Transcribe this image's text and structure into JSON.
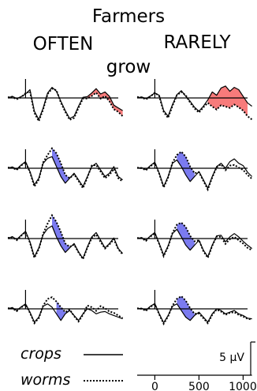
{
  "header": {
    "line1": "Farmers",
    "left": "OFTEN",
    "right": "RARELY",
    "verb": "grow"
  },
  "legend": {
    "solid_label": "crops",
    "dotted_label": "worms"
  },
  "scale": {
    "amplitude_label": "5 μV",
    "amplitude_value": 5,
    "time_unit": "ms",
    "ticks": [
      0,
      500,
      1000
    ]
  },
  "colors": {
    "positive_effect": "#f77b7b",
    "negative_effect": "#7b7bf0",
    "trace": "#000000"
  },
  "chart_data": {
    "type": "line",
    "x_unit": "ms",
    "y_unit": "μV",
    "xlim": [
      -200,
      1100
    ],
    "ylim": [
      -8,
      8
    ],
    "x": [
      -200,
      -150,
      -100,
      -50,
      0,
      50,
      100,
      150,
      200,
      250,
      300,
      350,
      400,
      450,
      500,
      550,
      600,
      650,
      700,
      750,
      800,
      850,
      900,
      950,
      1000,
      1050,
      1100
    ],
    "panels": [
      {
        "column": "OFTEN",
        "row": 1,
        "crops": [
          0.0,
          0.5,
          -0.2,
          0.4,
          1.2,
          2.5,
          -4.0,
          -6.5,
          -3.0,
          1.5,
          3.2,
          2.0,
          -1.0,
          -3.8,
          -6.2,
          -5.5,
          -2.5,
          0.2,
          0.4,
          1.5,
          2.8,
          1.2,
          1.8,
          0.5,
          -2.2,
          -3.0,
          -3.8
        ],
        "worms": [
          0.2,
          0.3,
          -0.4,
          0.2,
          1.4,
          2.0,
          -4.5,
          -7.0,
          -3.4,
          1.2,
          2.8,
          2.3,
          -1.4,
          -4.2,
          -6.6,
          -6.0,
          -3.0,
          -0.2,
          -0.2,
          0.6,
          1.6,
          -0.2,
          0.6,
          -1.0,
          -3.4,
          -4.2,
          -5.5
        ],
        "effect": "positive",
        "effect_window": [
          700,
          1100
        ]
      },
      {
        "column": "RARELY",
        "row": 1,
        "crops": [
          0.0,
          0.3,
          -0.2,
          0.6,
          1.5,
          0.8,
          -3.8,
          -5.5,
          -2.0,
          1.0,
          2.2,
          0.5,
          -1.0,
          -2.8,
          -4.0,
          -2.5,
          -0.6,
          1.8,
          0.8,
          3.0,
          3.6,
          2.0,
          3.2,
          2.5,
          0.5,
          -1.5,
          -2.5
        ],
        "worms": [
          0.3,
          0.1,
          -0.4,
          0.4,
          1.6,
          0.5,
          -4.2,
          -6.0,
          -2.4,
          0.8,
          1.8,
          0.8,
          -1.4,
          -3.2,
          -4.4,
          -2.8,
          -1.5,
          -2.6,
          -3.5,
          -2.2,
          -2.6,
          -3.0,
          -2.0,
          -2.8,
          -3.8,
          -5.5,
          -6.5
        ],
        "effect": "positive",
        "effect_window": [
          600,
          1050
        ]
      },
      {
        "column": "OFTEN",
        "row": 2,
        "crops": [
          0.0,
          0.4,
          -0.3,
          1.0,
          2.0,
          -1.0,
          -5.0,
          -3.0,
          1.5,
          3.0,
          3.5,
          0.5,
          -2.5,
          -4.5,
          -3.0,
          -1.5,
          -3.5,
          -5.5,
          -2.5,
          0.5,
          1.5,
          -0.5,
          -2.5,
          -1.5,
          0.5,
          -2.5,
          -3.5
        ],
        "worms": [
          0.2,
          0.2,
          -0.5,
          0.8,
          1.8,
          -1.2,
          -5.5,
          -3.4,
          1.8,
          4.0,
          6.0,
          4.5,
          1.5,
          -2.0,
          -3.0,
          -1.8,
          -3.8,
          -6.0,
          -2.8,
          0.8,
          1.0,
          -1.0,
          -3.0,
          -2.0,
          -0.2,
          -3.0,
          -4.0
        ],
        "effect": "negative",
        "effect_window": [
          300,
          500
        ]
      },
      {
        "column": "RARELY",
        "row": 2,
        "crops": [
          0.0,
          0.2,
          -0.4,
          0.8,
          1.8,
          -1.5,
          -5.5,
          -2.5,
          1.5,
          2.5,
          0.5,
          -2.0,
          -4.0,
          -2.5,
          -1.0,
          -3.5,
          -6.0,
          -2.5,
          0.5,
          1.5,
          0.0,
          2.0,
          2.8,
          1.5,
          0.8,
          -1.2,
          -2.5
        ],
        "worms": [
          0.2,
          0.0,
          -0.6,
          0.6,
          1.6,
          -1.7,
          -5.8,
          -2.8,
          1.7,
          4.0,
          5.0,
          3.5,
          0.5,
          -1.5,
          -1.2,
          -3.8,
          -6.4,
          -2.8,
          0.3,
          1.2,
          -0.6,
          0.8,
          1.0,
          0.2,
          -0.5,
          -2.0,
          -3.2
        ],
        "effect": "negative",
        "effect_window": [
          250,
          450
        ]
      },
      {
        "column": "OFTEN",
        "row": 3,
        "crops": [
          0.0,
          0.6,
          -0.3,
          1.0,
          2.2,
          -1.0,
          -5.5,
          -2.8,
          1.2,
          3.0,
          3.8,
          0.5,
          -2.2,
          -4.2,
          -2.8,
          -1.5,
          -4.0,
          -6.0,
          -2.5,
          0.5,
          1.8,
          -0.5,
          -2.8,
          -1.5,
          0.2,
          -3.0,
          -4.5
        ],
        "worms": [
          0.2,
          0.4,
          -0.5,
          0.8,
          2.0,
          -1.2,
          -5.8,
          -3.2,
          1.5,
          4.5,
          7.0,
          5.0,
          2.0,
          -1.5,
          -2.5,
          -1.8,
          -4.2,
          -6.2,
          -2.8,
          0.2,
          1.2,
          -1.0,
          -3.0,
          -1.8,
          -0.2,
          -3.2,
          -4.8
        ],
        "effect": "negative",
        "effect_window": [
          300,
          500
        ]
      },
      {
        "column": "RARELY",
        "row": 3,
        "crops": [
          0.0,
          0.3,
          -0.5,
          0.8,
          1.8,
          -1.5,
          -5.0,
          -2.2,
          1.5,
          2.8,
          0.5,
          -2.0,
          -3.5,
          -2.0,
          -0.5,
          -3.5,
          -5.5,
          -2.0,
          0.8,
          1.0,
          -1.0,
          0.5,
          1.5,
          0.5,
          -0.8,
          -2.0,
          -3.0
        ],
        "worms": [
          0.2,
          0.1,
          -0.7,
          0.6,
          1.6,
          -1.7,
          -5.3,
          -2.5,
          1.7,
          4.2,
          4.8,
          3.5,
          0.8,
          -0.8,
          -0.5,
          -3.8,
          -5.8,
          -2.2,
          0.6,
          0.5,
          -1.6,
          -0.2,
          0.5,
          -0.5,
          -1.5,
          -2.8,
          -3.5
        ],
        "effect": "negative",
        "effect_window": [
          250,
          450
        ]
      },
      {
        "column": "OFTEN",
        "row": 4,
        "crops": [
          0.0,
          0.4,
          -0.5,
          0.6,
          1.5,
          -1.0,
          -4.0,
          -2.5,
          0.8,
          1.5,
          0.5,
          -1.5,
          -3.5,
          -1.5,
          -0.5,
          -2.0,
          -3.5,
          -1.5,
          0.0,
          -0.5,
          -1.5,
          -1.0,
          -0.8,
          -1.5,
          -2.0,
          -2.5,
          -3.0
        ],
        "worms": [
          0.2,
          0.2,
          -0.7,
          0.4,
          1.3,
          -1.2,
          -4.3,
          -2.8,
          1.0,
          3.0,
          3.5,
          2.2,
          0.5,
          -1.0,
          -0.2,
          -2.2,
          -3.8,
          -1.8,
          1.0,
          0.5,
          -0.6,
          0.8,
          0.2,
          -0.8,
          -1.2,
          -2.0,
          -2.8
        ],
        "effect": "negative",
        "effect_window": [
          350,
          550
        ]
      },
      {
        "column": "RARELY",
        "row": 4,
        "crops": [
          0.0,
          0.2,
          -0.4,
          0.8,
          1.6,
          -1.5,
          -4.2,
          -2.0,
          0.8,
          1.5,
          -0.5,
          -2.5,
          -3.5,
          -2.0,
          -1.0,
          -2.5,
          -4.0,
          -1.5,
          0.0,
          -0.5,
          -1.5,
          -1.0,
          -0.5,
          -1.5,
          -2.0,
          -2.8,
          -3.0
        ],
        "worms": [
          0.2,
          0.0,
          -0.6,
          0.6,
          1.4,
          -1.7,
          -4.5,
          -2.3,
          1.0,
          3.0,
          3.8,
          2.5,
          0.2,
          -1.5,
          -1.4,
          -2.8,
          -4.3,
          -1.8,
          -0.2,
          -0.8,
          -1.8,
          -1.2,
          -1.0,
          -1.8,
          -2.3,
          -3.0,
          -3.2
        ],
        "effect": "negative",
        "effect_window": [
          250,
          450
        ]
      }
    ]
  }
}
